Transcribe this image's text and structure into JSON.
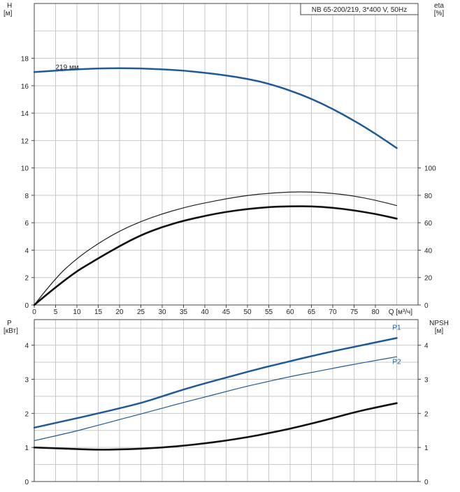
{
  "chart_data": [
    {
      "type": "line",
      "title": "NB 65-200/219, 3*400 V, 50Hz",
      "x": {
        "label": "Q [м³/ч]",
        "range": [
          0,
          90
        ],
        "ticks": [
          0,
          5,
          10,
          15,
          20,
          25,
          30,
          35,
          40,
          45,
          50,
          55,
          60,
          65,
          70,
          75,
          80
        ]
      },
      "y_left": {
        "label_line1": "H",
        "label_line2": "[м]",
        "range": [
          0,
          22
        ],
        "ticks": [
          0,
          2,
          4,
          6,
          8,
          10,
          12,
          14,
          16,
          18
        ]
      },
      "y_right": {
        "label_line1": "eta",
        "label_line2": "[%]",
        "range": [
          0,
          220
        ],
        "ticks": [
          0,
          20,
          40,
          60,
          80,
          100
        ]
      },
      "grid": true,
      "series": [
        {
          "name": "219 мм",
          "axis": "left",
          "color": "#1f5a96",
          "width": 2.5,
          "points": [
            [
              0,
              17.0
            ],
            [
              5,
              17.1
            ],
            [
              10,
              17.2
            ],
            [
              15,
              17.26
            ],
            [
              20,
              17.28
            ],
            [
              25,
              17.26
            ],
            [
              30,
              17.2
            ],
            [
              35,
              17.1
            ],
            [
              40,
              16.95
            ],
            [
              45,
              16.75
            ],
            [
              50,
              16.5
            ],
            [
              55,
              16.15
            ],
            [
              60,
              15.65
            ],
            [
              65,
              15.05
            ],
            [
              70,
              14.3
            ],
            [
              75,
              13.45
            ],
            [
              80,
              12.5
            ],
            [
              85,
              11.45
            ]
          ]
        },
        {
          "axis": "right",
          "color": "#222222",
          "width": 1.2,
          "points": [
            [
              0,
              0
            ],
            [
              5,
              20
            ],
            [
              10,
              34
            ],
            [
              15,
              45
            ],
            [
              20,
              54
            ],
            [
              25,
              61
            ],
            [
              30,
              66.5
            ],
            [
              35,
              71
            ],
            [
              40,
              74.5
            ],
            [
              45,
              77.5
            ],
            [
              50,
              80
            ],
            [
              55,
              81.5
            ],
            [
              60,
              82.5
            ],
            [
              65,
              82.5
            ],
            [
              70,
              81.5
            ],
            [
              75,
              79.5
            ],
            [
              80,
              76.5
            ],
            [
              85,
              72.5
            ]
          ]
        },
        {
          "axis": "right",
          "color": "#111111",
          "width": 2.6,
          "points": [
            [
              0,
              0
            ],
            [
              8,
              21
            ],
            [
              15,
              34
            ],
            [
              20,
              43
            ],
            [
              25,
              51
            ],
            [
              30,
              57
            ],
            [
              35,
              61.5
            ],
            [
              40,
              65
            ],
            [
              45,
              68
            ],
            [
              50,
              70
            ],
            [
              55,
              71.5
            ],
            [
              60,
              72
            ],
            [
              65,
              72
            ],
            [
              70,
              71
            ],
            [
              75,
              69
            ],
            [
              80,
              66.5
            ],
            [
              85,
              63
            ]
          ]
        }
      ],
      "annotations": [
        {
          "text": "219 мм",
          "x": 5,
          "y": 17.2
        }
      ]
    },
    {
      "type": "line",
      "x": {
        "label": "",
        "range": [
          0,
          90
        ]
      },
      "y_left": {
        "label_line1": "P",
        "label_line2": "[кВт]",
        "range": [
          0,
          4.75
        ],
        "ticks": [
          0,
          1,
          2,
          3,
          4
        ]
      },
      "y_right": {
        "label_line1": "NPSH",
        "label_line2": "[м]",
        "range": [
          0,
          4.75
        ],
        "ticks": [
          0,
          1,
          2,
          3,
          4
        ]
      },
      "grid": true,
      "series": [
        {
          "name": "P1",
          "axis": "left",
          "color": "#1f5a96",
          "width": 2.5,
          "points": [
            [
              0,
              1.58
            ],
            [
              8,
              1.8
            ],
            [
              15,
              2.0
            ],
            [
              20,
              2.15
            ],
            [
              25,
              2.3
            ],
            [
              30,
              2.5
            ],
            [
              35,
              2.7
            ],
            [
              40,
              2.88
            ],
            [
              45,
              3.05
            ],
            [
              50,
              3.22
            ],
            [
              55,
              3.38
            ],
            [
              60,
              3.53
            ],
            [
              65,
              3.68
            ],
            [
              70,
              3.82
            ],
            [
              75,
              3.95
            ],
            [
              80,
              4.08
            ],
            [
              85,
              4.21
            ]
          ]
        },
        {
          "name": "P2",
          "axis": "left",
          "color": "#1f5a96",
          "width": 1.2,
          "points": [
            [
              0,
              1.2
            ],
            [
              8,
              1.42
            ],
            [
              15,
              1.65
            ],
            [
              20,
              1.82
            ],
            [
              25,
              1.98
            ],
            [
              30,
              2.15
            ],
            [
              35,
              2.32
            ],
            [
              40,
              2.48
            ],
            [
              45,
              2.64
            ],
            [
              50,
              2.8
            ],
            [
              55,
              2.94
            ],
            [
              60,
              3.08
            ],
            [
              65,
              3.2
            ],
            [
              70,
              3.32
            ],
            [
              75,
              3.44
            ],
            [
              80,
              3.55
            ],
            [
              85,
              3.66
            ]
          ]
        },
        {
          "axis": "right",
          "color": "#111111",
          "width": 2.6,
          "points": [
            [
              0,
              1.0
            ],
            [
              8,
              0.96
            ],
            [
              15,
              0.93
            ],
            [
              20,
              0.94
            ],
            [
              25,
              0.96
            ],
            [
              30,
              1.0
            ],
            [
              35,
              1.05
            ],
            [
              40,
              1.12
            ],
            [
              45,
              1.2
            ],
            [
              50,
              1.3
            ],
            [
              55,
              1.42
            ],
            [
              60,
              1.55
            ],
            [
              65,
              1.7
            ],
            [
              70,
              1.86
            ],
            [
              75,
              2.03
            ],
            [
              80,
              2.17
            ],
            [
              85,
              2.3
            ]
          ]
        }
      ],
      "annotations": [
        {
          "text": "P1",
          "x": 84,
          "y": 4.45
        },
        {
          "text": "P2",
          "x": 84,
          "y": 3.45
        }
      ]
    }
  ]
}
